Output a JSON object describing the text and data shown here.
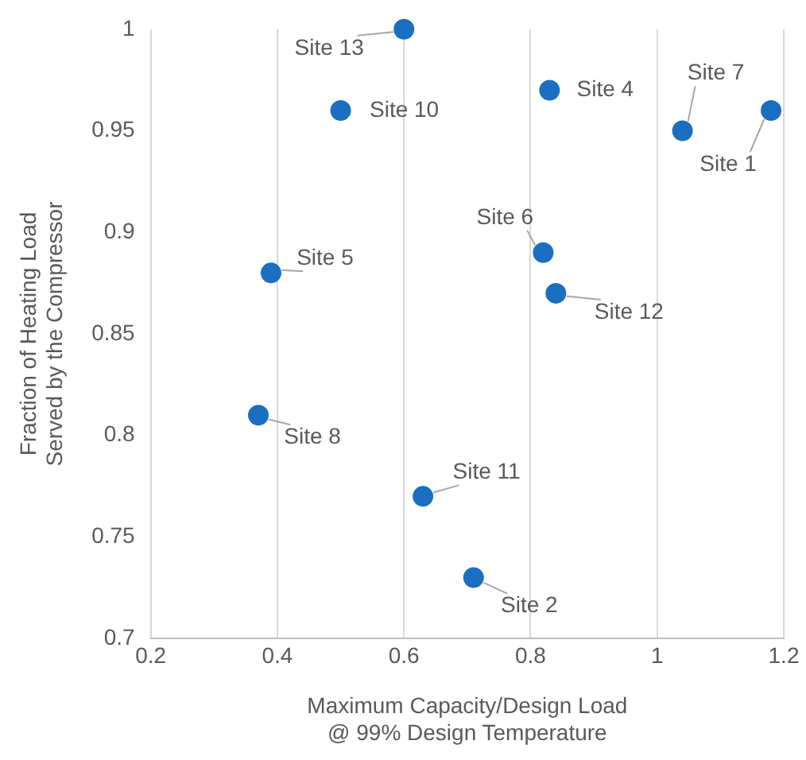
{
  "chart_data": {
    "type": "scatter",
    "xlabel": "Maximum Capacity/Design Load @ 99% Design Temperature",
    "ylabel": "Fraction of Heating Load Served by the Compressor",
    "series": [
      {
        "color": "#1b6fc0",
        "x": [
          0.6,
          0.5,
          0.83,
          1.04,
          1.18,
          0.39,
          0.82,
          0.84,
          0.37,
          0.63,
          0.71
        ],
        "values": [
          1.0,
          0.96,
          0.97,
          0.95,
          0.96,
          0.88,
          0.89,
          0.87,
          0.81,
          0.77,
          0.73
        ]
      }
    ],
    "xlim": [
      0.2,
      1.2
    ],
    "xticks": [
      {
        "value": 0.2,
        "label": "0.2"
      },
      {
        "value": 0.4,
        "label": "0.4"
      },
      {
        "value": 0.6,
        "label": "0.6"
      },
      {
        "value": 0.8,
        "label": "0.8"
      },
      1,
      {
        "value": 1.2,
        "label": "1.2"
      }
    ],
    "ylim": [
      0.7,
      1
    ],
    "yticks": [
      {
        "value": 0.7,
        "label": "0.7"
      },
      {
        "value": 0.75,
        "label": "0.75"
      },
      {
        "value": 0.8,
        "label": "0.8"
      },
      {
        "value": 0.85,
        "label": "0.85"
      },
      {
        "value": 0.9,
        "label": "0.9"
      },
      {
        "value": 0.95,
        "label": "0.95"
      },
      1
    ],
    "grid": "x",
    "marker": "circle",
    "legend": false,
    "annotations": [
      {
        "text": "Site 13",
        "x": 0.6,
        "y": 1.0
      },
      {
        "text": "Site 10",
        "x": 0.5,
        "y": 0.96
      },
      {
        "text": "Site 4",
        "x": 0.83,
        "y": 0.97
      },
      {
        "text": "Site 7",
        "x": 1.04,
        "y": 0.95
      },
      {
        "text": "Site 1",
        "x": 1.18,
        "y": 0.96
      },
      {
        "text": "Site 5",
        "x": 0.39,
        "y": 0.88
      },
      {
        "text": "Site 6",
        "x": 0.82,
        "y": 0.89
      },
      {
        "text": "Site 12",
        "x": 0.84,
        "y": 0.87
      },
      {
        "text": "Site 8",
        "x": 0.37,
        "y": 0.81
      },
      {
        "text": "Site 11",
        "x": 0.63,
        "y": 0.77
      },
      {
        "text": "Site 2",
        "x": 0.71,
        "y": 0.73
      }
    ]
  }
}
